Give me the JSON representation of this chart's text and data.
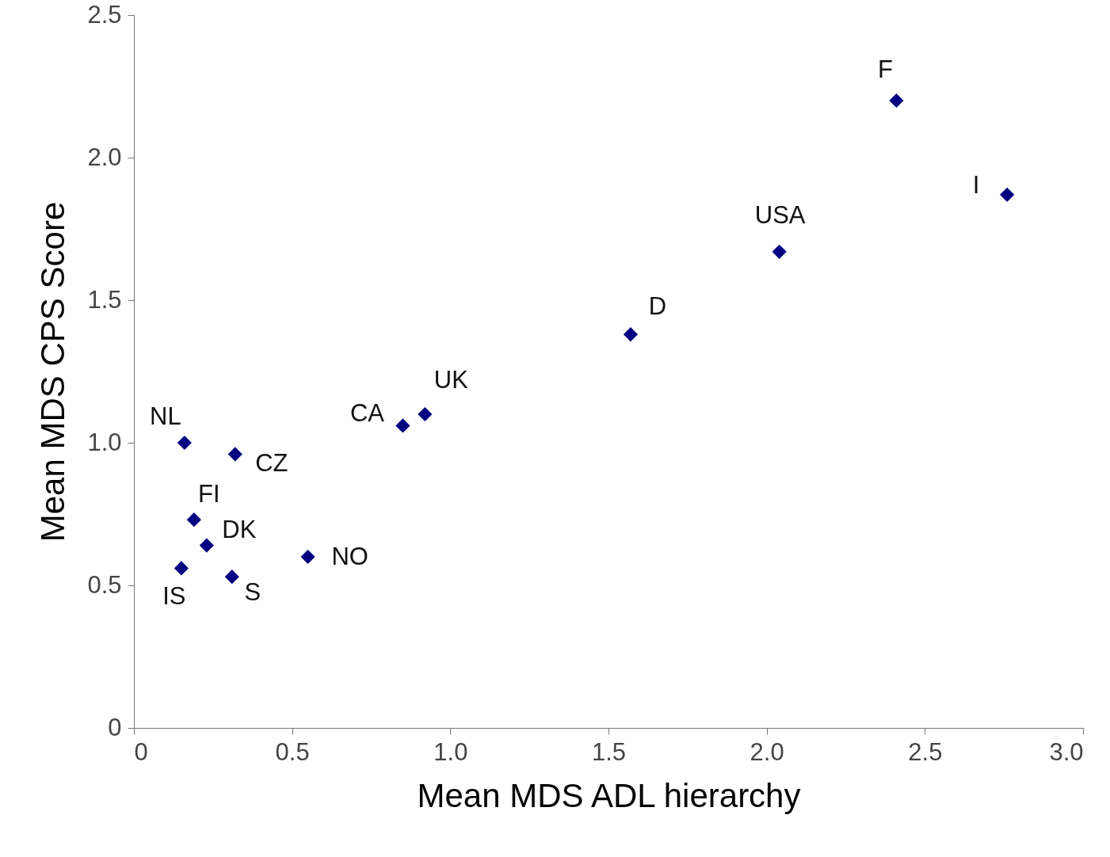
{
  "chart_data": {
    "type": "scatter",
    "xlabel": "Mean MDS ADL hierarchy",
    "ylabel": "Mean MDS CPS Score",
    "marker": "diamond",
    "grid": false,
    "xlim": [
      0,
      3
    ],
    "ylim": [
      0,
      2.5
    ],
    "xticks": [
      0,
      {
        "value": 0.5,
        "label": "0.5"
      },
      {
        "value": 1,
        "label": "1.0"
      },
      {
        "value": 1.5,
        "label": "1.5"
      },
      {
        "value": 2,
        "label": "2.0"
      },
      {
        "value": 2.5,
        "label": "2.5"
      },
      {
        "value": 3,
        "label": "3.0"
      }
    ],
    "yticks": [
      0,
      {
        "value": 0.5,
        "label": "0.5"
      },
      {
        "value": 1,
        "label": "1.0"
      },
      {
        "value": 1.5,
        "label": "1.5"
      },
      {
        "value": 2,
        "label": "2.0"
      },
      {
        "value": 2.5,
        "label": "2.5"
      }
    ],
    "series": [
      {
        "color": "#000080",
        "x": [
          0.16,
          0.32,
          0.19,
          0.23,
          0.15,
          0.31,
          0.55,
          0.85,
          0.92,
          1.57,
          2.04,
          2.41,
          2.76
        ],
        "values": [
          1.0,
          0.96,
          0.73,
          0.64,
          0.56,
          0.53,
          0.6,
          1.06,
          1.1,
          1.38,
          1.67,
          2.2,
          1.87
        ]
      }
    ],
    "annotations": [
      {
        "text": "NL",
        "x": 0.16,
        "y": 1.0
      },
      {
        "text": "CZ",
        "x": 0.32,
        "y": 0.96
      },
      {
        "text": "FI",
        "x": 0.19,
        "y": 0.73
      },
      {
        "text": "DK",
        "x": 0.23,
        "y": 0.64
      },
      {
        "text": "IS",
        "x": 0.15,
        "y": 0.56
      },
      {
        "text": "S",
        "x": 0.31,
        "y": 0.53
      },
      {
        "text": "NO",
        "x": 0.55,
        "y": 0.6
      },
      {
        "text": "CA",
        "x": 0.85,
        "y": 1.06
      },
      {
        "text": "UK",
        "x": 0.92,
        "y": 1.1
      },
      {
        "text": "D",
        "x": 1.57,
        "y": 1.38
      },
      {
        "text": "USA",
        "x": 2.04,
        "y": 1.67
      },
      {
        "text": "F",
        "x": 2.41,
        "y": 2.2
      },
      {
        "text": "I",
        "x": 2.76,
        "y": 1.87
      }
    ]
  }
}
